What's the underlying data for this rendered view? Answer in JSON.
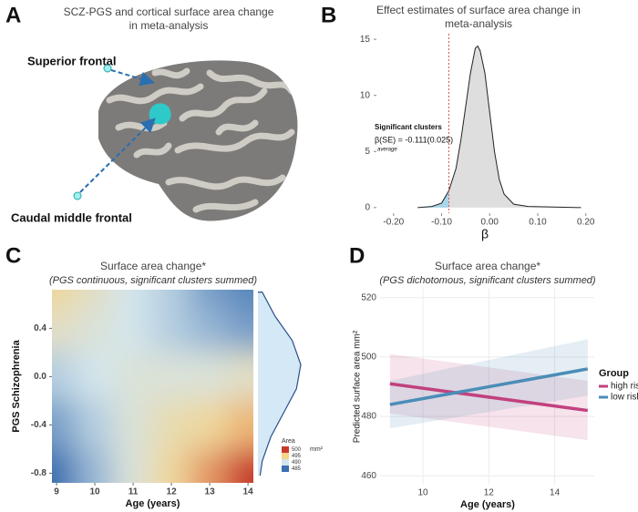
{
  "chart_data": [
    {
      "type": "brain",
      "label": "A",
      "title_lines": [
        "SCZ-PGS and cortical surface area change",
        "in meta-analysis"
      ],
      "annotations": [
        "Superior frontal",
        "Caudal middle frontal"
      ]
    },
    {
      "type": "density",
      "label": "B",
      "title_lines": [
        "Effect estimates of surface area change in",
        "meta-analysis"
      ],
      "x": [
        -0.15,
        -0.12,
        -0.1,
        -0.085,
        -0.07,
        -0.06,
        -0.05,
        -0.04,
        -0.03,
        -0.025,
        -0.02,
        -0.01,
        0.0,
        0.01,
        0.02,
        0.03,
        0.05,
        0.08,
        0.19
      ],
      "values": [
        0,
        0.1,
        0.4,
        1.5,
        3.5,
        6,
        9,
        12,
        14.2,
        14.4,
        14,
        12,
        8.5,
        5,
        2.5,
        1.2,
        0.3,
        0.1,
        0
      ],
      "xlim": [
        -0.23,
        0.21
      ],
      "ylim": [
        -0.5,
        15.5
      ],
      "xticks": [
        {
          "value": -0.2,
          "label": "-0.20"
        },
        {
          "value": -0.1,
          "label": "-0.10"
        },
        {
          "value": 0,
          "label": "0.00"
        },
        {
          "value": 0.1,
          "label": "0.10"
        },
        {
          "value": 0.2,
          "label": "0.20"
        }
      ],
      "yticks": [
        0,
        5,
        10,
        15
      ],
      "xlabel": "β",
      "threshold": -0.085,
      "fill": "#dedede",
      "highlight": "#a9d6ea",
      "threshold_color": "#d9534f",
      "annotations": [
        "Significant clusters",
        "β(SE) = -0.111(0.025)",
        "average"
      ]
    },
    {
      "type": "heatmap",
      "label": "C",
      "title": "Surface area change*",
      "subtitle": "(PGS continuous, significant clusters summed)",
      "xlabel": "Age (years)",
      "ylabel": "PGS Schizophrenia",
      "x": [
        9,
        10,
        11,
        12,
        13,
        14
      ],
      "y": [
        0.7,
        0.4,
        0.0,
        -0.4,
        -0.82
      ],
      "z": [
        [
          494,
          492,
          490,
          489,
          487,
          486
        ],
        [
          492,
          491,
          490,
          489,
          488,
          487
        ],
        [
          489,
          490,
          491,
          491,
          491,
          492
        ],
        [
          487,
          489,
          491,
          493,
          494,
          496
        ],
        [
          485,
          488,
          491,
          494,
          497,
          500
        ]
      ],
      "xlim": [
        8.88,
        14.14
      ],
      "ylim": [
        -0.88,
        0.72
      ],
      "xticks": [
        9,
        10,
        11,
        12,
        13,
        14
      ],
      "yticks": [
        {
          "value": -0.8,
          "label": "-0.8"
        },
        {
          "value": -0.4,
          "label": "-0.4"
        },
        {
          "value": 0,
          "label": "0.0"
        },
        {
          "value": 0.4,
          "label": "0.4"
        }
      ],
      "legend_title": "Area",
      "unit": "mm²",
      "legend_ticks": [
        500,
        495,
        490,
        485
      ],
      "legend_colors": [
        "#c73a2e",
        "#f5d488",
        "#d3e5ec",
        "#3a6fb0"
      ],
      "marginal": {
        "y": [
          0.7,
          0.5,
          0.3,
          0.1,
          -0.1,
          -0.3,
          -0.5,
          -0.7,
          -0.82
        ],
        "density": [
          0.1,
          0.4,
          0.8,
          1.0,
          0.9,
          0.6,
          0.3,
          0.1,
          0.05
        ]
      },
      "marginal_fill": "#d4e9f5",
      "marginal_stroke": "#2b4f8a"
    },
    {
      "type": "line",
      "label": "D",
      "title": "Surface area change*",
      "subtitle": "(PGS dichotomous, significant clusters summed)",
      "xlabel": "Age (years)",
      "ylabel": "Predicted surface area mm²",
      "x": [
        9,
        15
      ],
      "series": [
        {
          "name": "high risk",
          "color": "#c2417f",
          "values": [
            491,
            482
          ],
          "lower": [
            481,
            472
          ],
          "upper": [
            501,
            492
          ]
        },
        {
          "name": "low risk",
          "color": "#4b8db8",
          "values": [
            484,
            496
          ],
          "lower": [
            476,
            487
          ],
          "upper": [
            492,
            506
          ]
        }
      ],
      "xlim": [
        8.7,
        15.2
      ],
      "ylim": [
        457,
        523
      ],
      "xticks": [
        10,
        12,
        14
      ],
      "yticks": [
        460,
        480,
        500,
        520
      ],
      "grid": true,
      "legend_title": "Group"
    }
  ]
}
